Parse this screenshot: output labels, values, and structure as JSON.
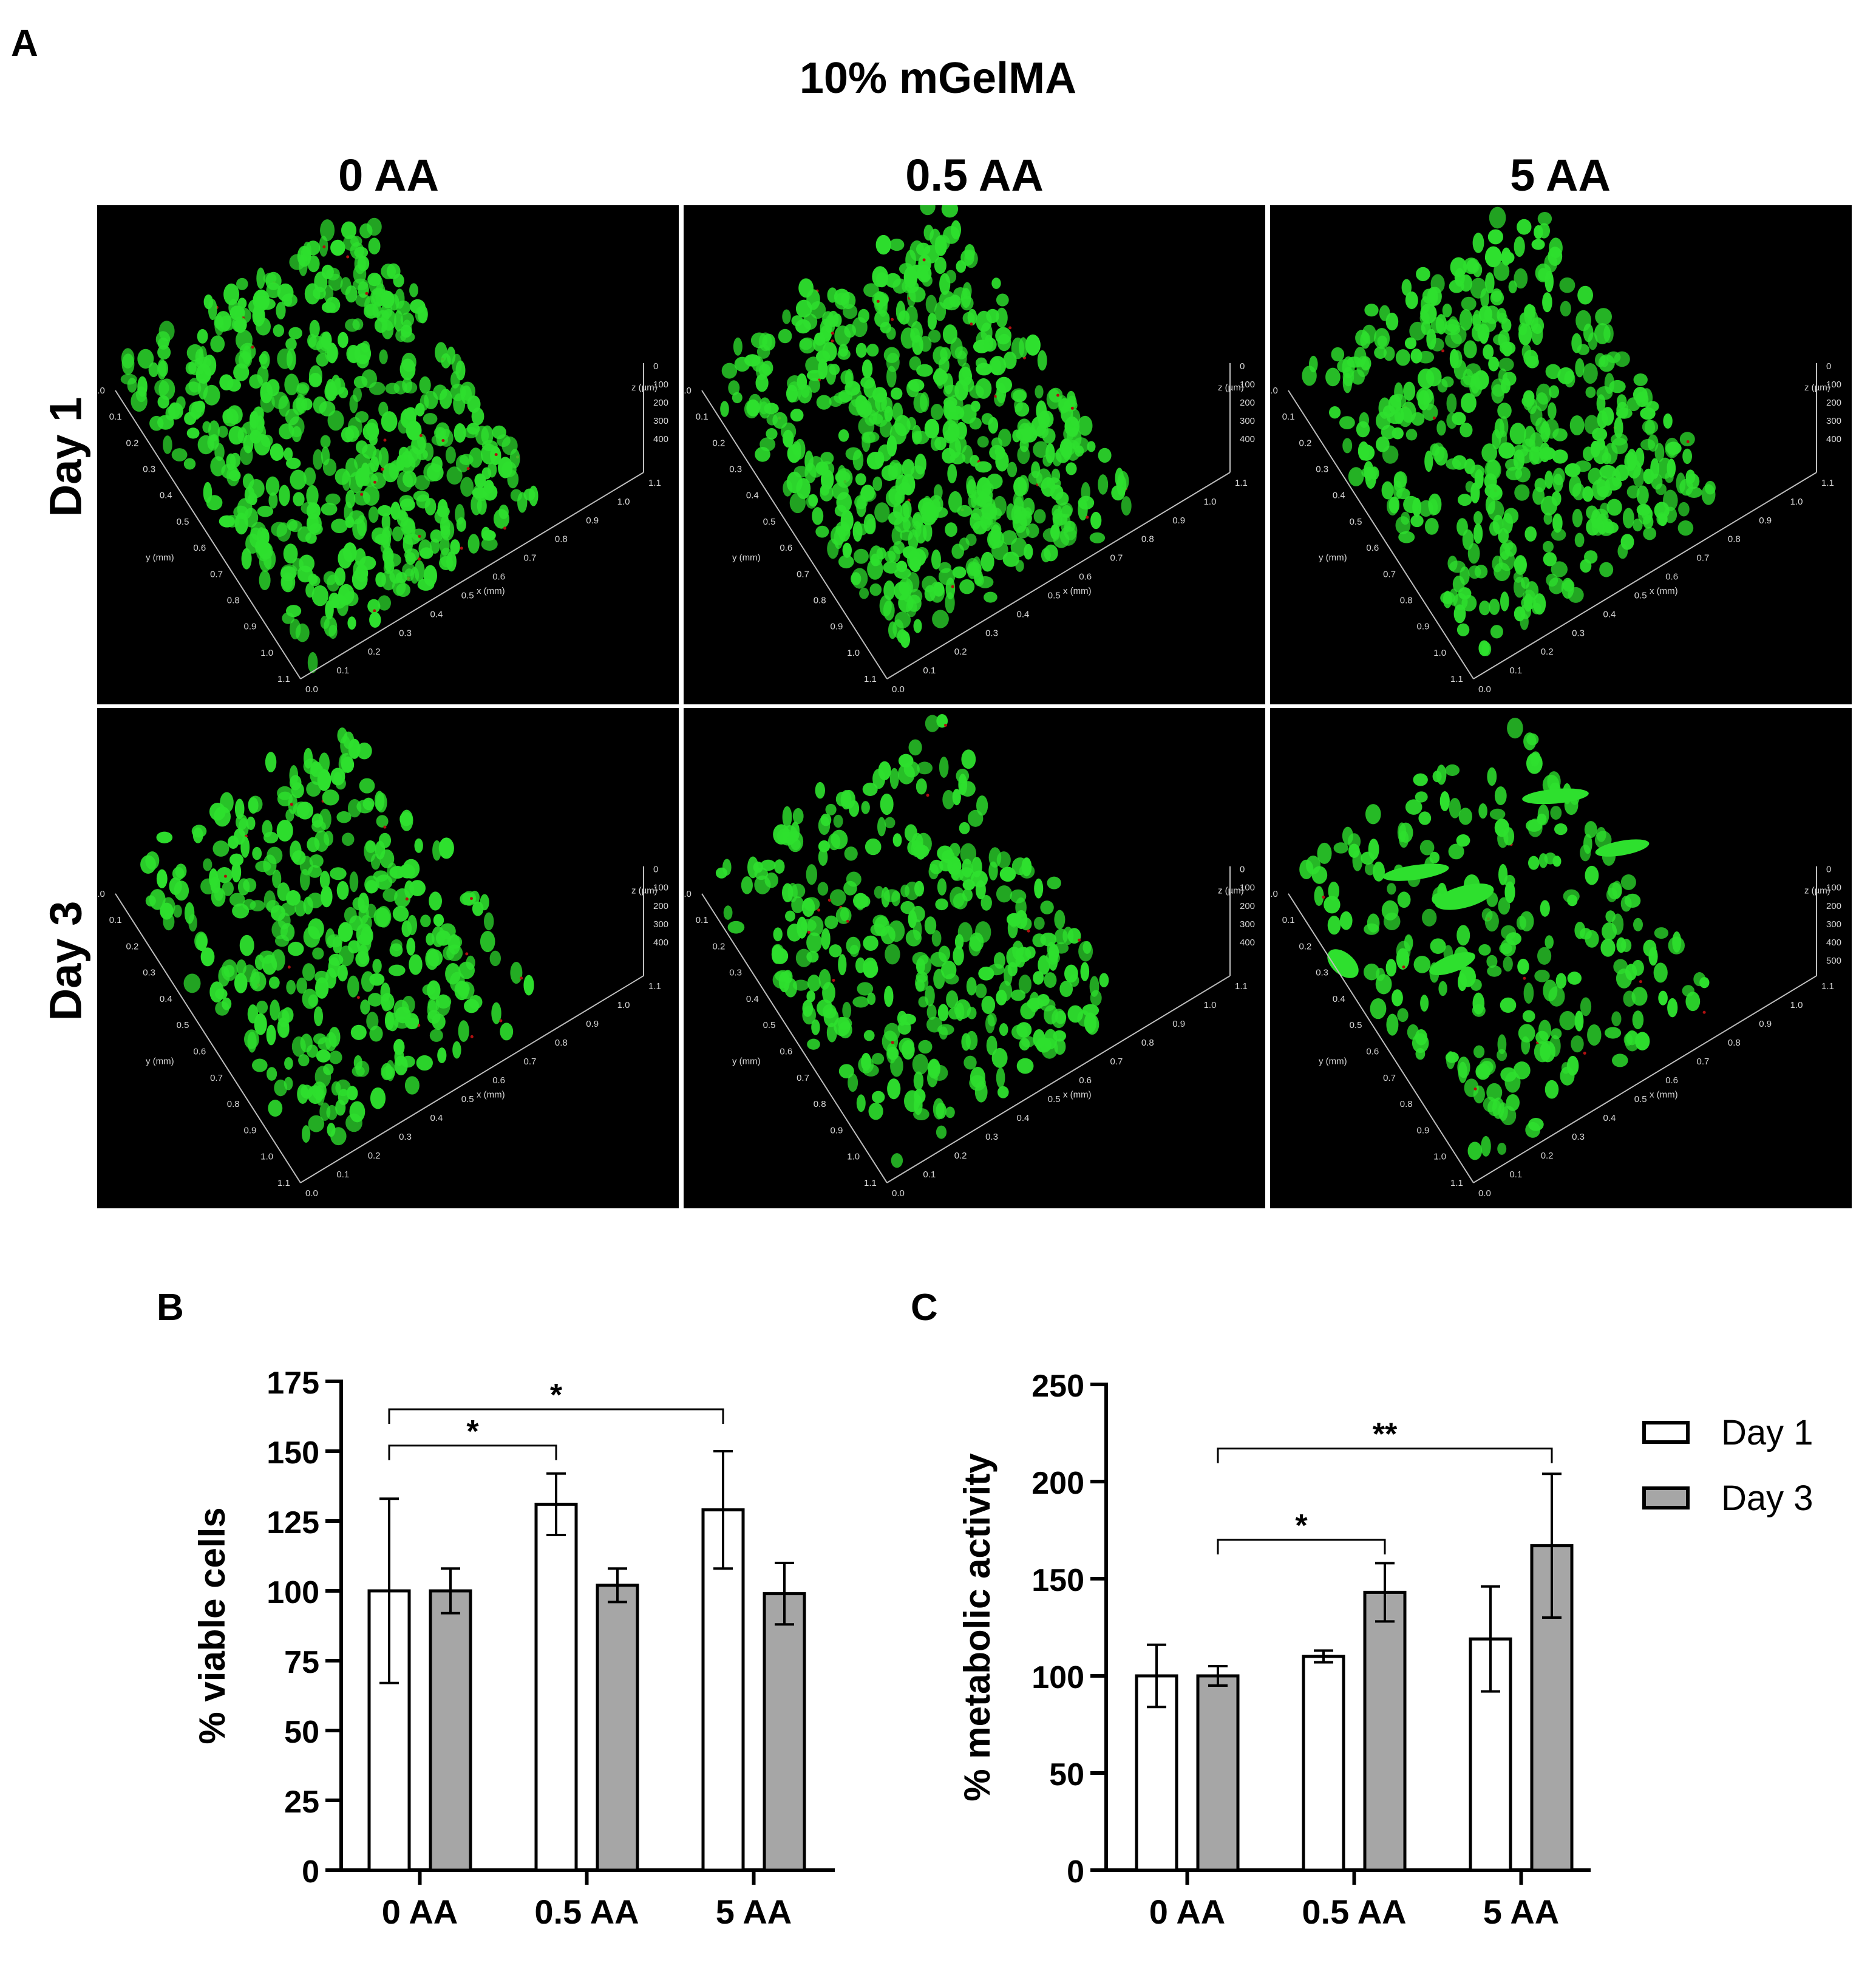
{
  "panels": {
    "a": "A",
    "b": "B",
    "c": "C"
  },
  "figure_title": "10% mGelMA",
  "column_headers": [
    "0 AA",
    "0.5 AA",
    "5 AA"
  ],
  "row_headers": [
    "Day 1",
    "Day 3"
  ],
  "micro_axes": {
    "x_ticks": [
      "0.0",
      "0.1",
      "0.2",
      "0.3",
      "0.4",
      "0.5",
      "0.6",
      "0.7",
      "0.8",
      "0.9",
      "1.0",
      "1.1"
    ],
    "y_ticks": [
      "0.0",
      "0.1",
      "0.2",
      "0.3",
      "0.4",
      "0.5",
      "0.6",
      "0.7",
      "0.8",
      "0.9",
      "1.0",
      "1.1"
    ],
    "z_ticks_standard": [
      "0",
      "100",
      "200",
      "300",
      "400"
    ],
    "z_ticks_day3_5aa": [
      "0",
      "100",
      "200",
      "300",
      "400",
      "500"
    ],
    "x_label": "x (mm)",
    "y_label": "y (mm)",
    "z_label": "z (µm)"
  },
  "colors": {
    "live": "#2ee02e",
    "dead": "#b01010",
    "background": "#000000",
    "day1_bar": "#ffffff",
    "day3_bar": "#a6a6a6"
  },
  "chart_data": [
    {
      "type": "bar",
      "categories": [
        "0 AA",
        "0.5 AA",
        "5 AA"
      ],
      "ylabel": "% viable cells",
      "ylim": [
        0,
        175
      ],
      "yticks": [
        0,
        25,
        50,
        75,
        100,
        125,
        150,
        175
      ],
      "series": [
        {
          "name": "Day 1",
          "values": [
            100,
            131,
            129
          ],
          "errors": [
            33,
            11,
            21
          ]
        },
        {
          "name": "Day 3",
          "values": [
            100,
            102,
            99
          ],
          "errors": [
            8,
            6,
            11
          ]
        }
      ],
      "significance": [
        {
          "from": [
            0,
            0
          ],
          "to": [
            1,
            0
          ],
          "label": "*",
          "level": 152
        },
        {
          "from": [
            0,
            0
          ],
          "to": [
            2,
            0
          ],
          "label": "*",
          "level": 165
        }
      ]
    },
    {
      "type": "bar",
      "categories": [
        "0 AA",
        "0.5 AA",
        "5 AA"
      ],
      "ylabel": "% metabolic activity",
      "ylim": [
        0,
        250
      ],
      "yticks": [
        0,
        50,
        100,
        150,
        200,
        250
      ],
      "series": [
        {
          "name": "Day 1",
          "values": [
            100,
            110,
            119
          ],
          "errors": [
            16,
            3,
            27
          ]
        },
        {
          "name": "Day 3",
          "values": [
            100,
            143,
            167
          ],
          "errors": [
            5,
            15,
            37
          ]
        }
      ],
      "significance": [
        {
          "from": [
            0,
            1
          ],
          "to": [
            1,
            1
          ],
          "label": "*",
          "level": 170
        },
        {
          "from": [
            0,
            1
          ],
          "to": [
            2,
            1
          ],
          "label": "**",
          "level": 217
        }
      ],
      "legend": "top-right"
    }
  ]
}
